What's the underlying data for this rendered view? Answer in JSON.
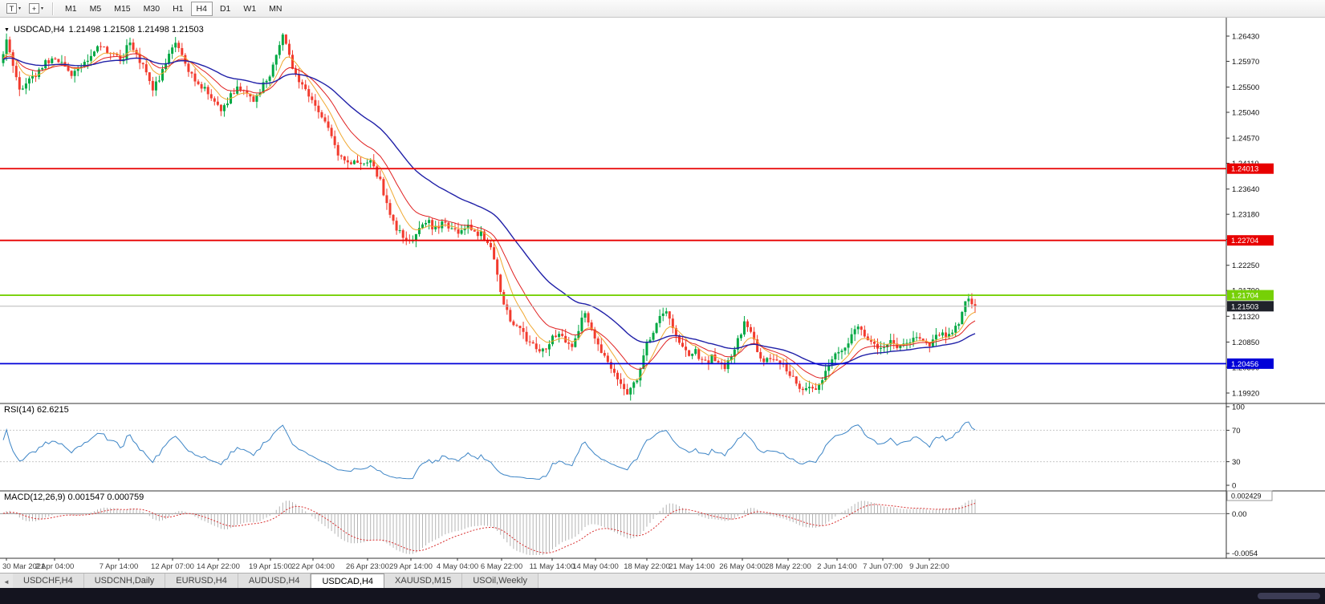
{
  "toolbar": {
    "template_icon_label": "T",
    "crosshair_glyph": "+",
    "dropdown_glyph": "▾",
    "timeframes": [
      {
        "label": "M1",
        "active": false
      },
      {
        "label": "M5",
        "active": false
      },
      {
        "label": "M15",
        "active": false
      },
      {
        "label": "M30",
        "active": false
      },
      {
        "label": "H1",
        "active": false
      },
      {
        "label": "H4",
        "active": true
      },
      {
        "label": "D1",
        "active": false
      },
      {
        "label": "W1",
        "active": false
      },
      {
        "label": "MN",
        "active": false
      }
    ]
  },
  "chart": {
    "collapse_glyph": "▼",
    "title_symbol": "USDCAD,H4",
    "title_quotes": "1.21498 1.21508 1.21498 1.21503",
    "current_price_label": "1.21503",
    "hlines": [
      {
        "price": 1.24013,
        "label": "1.24013",
        "color": "#e80000",
        "text_color": "#ffffff"
      },
      {
        "price": 1.22704,
        "label": "1.22704",
        "color": "#e80000",
        "text_color": "#ffffff"
      },
      {
        "price": 1.21704,
        "label": "1.21704",
        "color": "#76d006",
        "text_color": "#ffffff"
      },
      {
        "price": 1.20456,
        "label": "1.20456",
        "color": "#0000d8",
        "text_color": "#ffffff"
      }
    ],
    "time_labels": [
      [
        "30 Mar 2021",
        8
      ],
      [
        "2 Apr 04:00",
        68
      ],
      [
        "7 Apr 14:00",
        148
      ],
      [
        "12 Apr 07:00",
        215
      ],
      [
        "14 Apr 22:00",
        272
      ],
      [
        "19 Apr 15:00",
        337
      ],
      [
        "22 Apr 04:00",
        390
      ],
      [
        "26 Apr 23:00",
        458
      ],
      [
        "29 Apr 14:00",
        512
      ],
      [
        "4 May 04:00",
        570
      ],
      [
        "6 May 22:00",
        625
      ],
      [
        "11 May 14:00",
        688
      ],
      [
        "14 May 04:00",
        742
      ],
      [
        "18 May 22:00",
        806
      ],
      [
        "21 May 14:00",
        862
      ],
      [
        "26 May 04:00",
        925
      ],
      [
        "28 May 22:00",
        982
      ],
      [
        "2 Jun 14:00",
        1043
      ],
      [
        "7 Jun 07:00",
        1100
      ],
      [
        "9 Jun 22:00",
        1158
      ]
    ],
    "colors": {
      "up": "#00a843",
      "down": "#f23b2e",
      "ma_fast": "#f0a830",
      "ma_mid": "#e02020",
      "ma_slow": "#2020a8",
      "bid_line": "#b8b8b8",
      "bid_tag_bg": "#20232b",
      "rsi_line": "#3d85c6",
      "macd_bar": "#b4b4b4",
      "macd_signal": "#d83030"
    }
  },
  "chart_data": {
    "type": "candlestick",
    "symbol": "USDCAD",
    "timeframe": "H4",
    "last_quote": {
      "open": 1.21498,
      "high": 1.21508,
      "low": 1.21498,
      "close": 1.21503
    },
    "current_price": 1.21503,
    "horizontal_levels": [
      1.24013,
      1.22704,
      1.21704,
      1.20456
    ],
    "y_axis": {
      "ticks": [
        1.2643,
        1.2597,
        1.255,
        1.2504,
        1.2457,
        1.2411,
        1.2364,
        1.2318,
        1.2272,
        1.2225,
        1.2179,
        1.2132,
        1.2085,
        1.2039,
        1.1992
      ]
    },
    "x_axis": {
      "start": "30 Mar 2021",
      "end": "9 Jun 22:00"
    },
    "price_path": [
      [
        0,
        1.26
      ],
      [
        8,
        1.2632
      ],
      [
        16,
        1.2585
      ],
      [
        26,
        1.2545
      ],
      [
        36,
        1.256
      ],
      [
        48,
        1.258
      ],
      [
        60,
        1.2598
      ],
      [
        70,
        1.2605
      ],
      [
        80,
        1.2588
      ],
      [
        92,
        1.2572
      ],
      [
        102,
        1.259
      ],
      [
        112,
        1.2602
      ],
      [
        122,
        1.2628
      ],
      [
        132,
        1.2618
      ],
      [
        142,
        1.2605
      ],
      [
        152,
        1.2598
      ],
      [
        160,
        1.2628
      ],
      [
        170,
        1.2612
      ],
      [
        180,
        1.258
      ],
      [
        190,
        1.2548
      ],
      [
        200,
        1.257
      ],
      [
        210,
        1.2615
      ],
      [
        218,
        1.2628
      ],
      [
        228,
        1.2605
      ],
      [
        238,
        1.2572
      ],
      [
        248,
        1.2552
      ],
      [
        258,
        1.2545
      ],
      [
        268,
        1.2522
      ],
      [
        276,
        1.2505
      ],
      [
        286,
        1.2532
      ],
      [
        296,
        1.255
      ],
      [
        306,
        1.2535
      ],
      [
        316,
        1.2522
      ],
      [
        326,
        1.2548
      ],
      [
        336,
        1.2575
      ],
      [
        344,
        1.2605
      ],
      [
        352,
        1.2648
      ],
      [
        358,
        1.2622
      ],
      [
        366,
        1.2582
      ],
      [
        374,
        1.2555
      ],
      [
        382,
        1.2545
      ],
      [
        390,
        1.2525
      ],
      [
        398,
        1.2505
      ],
      [
        406,
        1.2482
      ],
      [
        414,
        1.2452
      ],
      [
        422,
        1.2425
      ],
      [
        432,
        1.2408
      ],
      [
        442,
        1.2415
      ],
      [
        452,
        1.2405
      ],
      [
        460,
        1.2418
      ],
      [
        468,
        1.2398
      ],
      [
        476,
        1.2368
      ],
      [
        484,
        1.233
      ],
      [
        492,
        1.2298
      ],
      [
        502,
        1.2275
      ],
      [
        512,
        1.2268
      ],
      [
        522,
        1.2295
      ],
      [
        532,
        1.2308
      ],
      [
        542,
        1.229
      ],
      [
        552,
        1.2302
      ],
      [
        562,
        1.2295
      ],
      [
        572,
        1.2282
      ],
      [
        582,
        1.2298
      ],
      [
        592,
        1.2288
      ],
      [
        602,
        1.2278
      ],
      [
        612,
        1.2252
      ],
      [
        620,
        1.2205
      ],
      [
        628,
        1.2155
      ],
      [
        638,
        1.2122
      ],
      [
        648,
        1.2105
      ],
      [
        658,
        1.2088
      ],
      [
        668,
        1.2078
      ],
      [
        678,
        1.2068
      ],
      [
        688,
        1.209
      ],
      [
        696,
        1.2102
      ],
      [
        704,
        1.2082
      ],
      [
        712,
        1.2072
      ],
      [
        720,
        1.2105
      ],
      [
        728,
        1.2142
      ],
      [
        736,
        1.2108
      ],
      [
        744,
        1.2085
      ],
      [
        752,
        1.2058
      ],
      [
        760,
        1.2038
      ],
      [
        768,
        1.2018
      ],
      [
        776,
        1.1998
      ],
      [
        784,
        1.1992
      ],
      [
        792,
        1.2012
      ],
      [
        800,
        1.2052
      ],
      [
        808,
        1.2088
      ],
      [
        816,
        1.2112
      ],
      [
        824,
        1.2132
      ],
      [
        832,
        1.2138
      ],
      [
        840,
        1.2108
      ],
      [
        848,
        1.2078
      ],
      [
        856,
        1.2062
      ],
      [
        864,
        1.207
      ],
      [
        872,
        1.2058
      ],
      [
        880,
        1.2045
      ],
      [
        888,
        1.2058
      ],
      [
        896,
        1.2048
      ],
      [
        904,
        1.204
      ],
      [
        912,
        1.2062
      ],
      [
        920,
        1.2095
      ],
      [
        928,
        1.2118
      ],
      [
        936,
        1.2098
      ],
      [
        944,
        1.2068
      ],
      [
        952,
        1.205
      ],
      [
        960,
        1.206
      ],
      [
        968,
        1.2048
      ],
      [
        976,
        1.204
      ],
      [
        984,
        1.2028
      ],
      [
        992,
        1.2008
      ],
      [
        1000,
        1.1994
      ],
      [
        1008,
        1.2002
      ],
      [
        1016,
        1.199
      ],
      [
        1024,
        1.2012
      ],
      [
        1032,
        1.2042
      ],
      [
        1042,
        1.206
      ],
      [
        1052,
        1.2076
      ],
      [
        1060,
        1.2092
      ],
      [
        1068,
        1.211
      ],
      [
        1076,
        1.2098
      ],
      [
        1084,
        1.208
      ],
      [
        1092,
        1.2076
      ],
      [
        1100,
        1.207
      ],
      [
        1110,
        1.2086
      ],
      [
        1120,
        1.2076
      ],
      [
        1130,
        1.2082
      ],
      [
        1140,
        1.2092
      ],
      [
        1150,
        1.2086
      ],
      [
        1158,
        1.208
      ],
      [
        1166,
        1.2092
      ],
      [
        1174,
        1.2102
      ],
      [
        1182,
        1.2096
      ],
      [
        1190,
        1.2112
      ],
      [
        1198,
        1.2132
      ],
      [
        1206,
        1.2168
      ],
      [
        1212,
        1.215
      ]
    ],
    "indicators": [
      {
        "name": "RSI",
        "period": 14,
        "current": 62.6215,
        "scale": [
          100,
          70,
          30,
          0
        ]
      },
      {
        "name": "MACD",
        "fast": 12,
        "slow": 26,
        "signal_period": 9,
        "current_macd": 0.001547,
        "current_signal": 0.000759,
        "scale_max": 0.002429,
        "scale_min": -0.0054
      }
    ]
  },
  "rsi_panel": {
    "label": "RSI(14) 62.6215",
    "scale_labels": [
      "100",
      "70",
      "30",
      "0"
    ]
  },
  "macd_panel": {
    "label": "MACD(12,26,9) 0.001547 0.000759",
    "scale_top": "0.002429",
    "scale_mid": "0.00",
    "scale_bottom": "-0.0054"
  },
  "tab_bar": {
    "scroll_glyph": "◄",
    "tabs": [
      {
        "label": "USDCHF,H4",
        "active": false
      },
      {
        "label": "USDCNH,Daily",
        "active": false
      },
      {
        "label": "EURUSD,H4",
        "active": false
      },
      {
        "label": "AUDUSD,H4",
        "active": false
      },
      {
        "label": "USDCAD,H4",
        "active": true
      },
      {
        "label": "XAUUSD,M15",
        "active": false
      },
      {
        "label": "USOil,Weekly",
        "active": false
      }
    ]
  }
}
